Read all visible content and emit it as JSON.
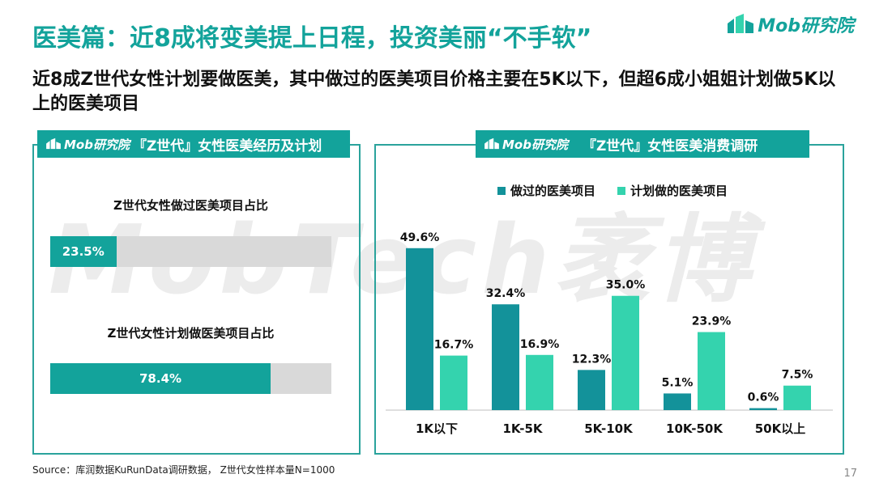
{
  "watermark_text": "MobTech袤博",
  "page_title": "医美篇：近8成将变美提上日程，投资美丽“不手软”",
  "logo_text": "Mob研究院",
  "subtitle": "近8成Z世代女性计划要做医美，其中做过的医美项目价格主要在5K以下，但超6成小姐姐计划做5K以上的医美项目",
  "left_panel": {
    "logo_text": "Mob研究院",
    "title": "『Z世代』女性医美经历及计划",
    "bars": [
      {
        "label": "Z世代女性做过医美项目占比",
        "value": 23.5,
        "value_label": "23.5%"
      },
      {
        "label": "Z世代女性计划做医美项目占比",
        "value": 78.4,
        "value_label": "78.4%"
      }
    ]
  },
  "right_panel": {
    "logo_text": "Mob研究院",
    "title": "『Z世代』女性医美消费调研"
  },
  "colors": {
    "teal_dark": "#13a39b",
    "bar_series_1": "#13929a",
    "bar_series_2": "#34d3ae",
    "track": "#d9d9d9"
  },
  "chart_data": {
    "type": "bar",
    "title": "",
    "xlabel": "",
    "ylabel": "",
    "ylim": [
      0,
      55
    ],
    "legend_position": "top",
    "grid": false,
    "categories": [
      "1K以下",
      "1K-5K",
      "5K-10K",
      "10K-50K",
      "50K以上"
    ],
    "series": [
      {
        "name": "做过的医美项目",
        "values": [
          49.6,
          32.4,
          12.3,
          5.1,
          0.6
        ],
        "labels": [
          "49.6%",
          "32.4%",
          "12.3%",
          "5.1%",
          "0.6%"
        ]
      },
      {
        "name": "计划做的医美项目",
        "values": [
          16.7,
          16.9,
          35.0,
          23.9,
          7.5
        ],
        "labels": [
          "16.7%",
          "16.9%",
          "35.0%",
          "23.9%",
          "7.5%"
        ]
      }
    ]
  },
  "source": "Source：库润数据KuRunData调研数据， Z世代女性样本量N=1000",
  "page_number": "17"
}
